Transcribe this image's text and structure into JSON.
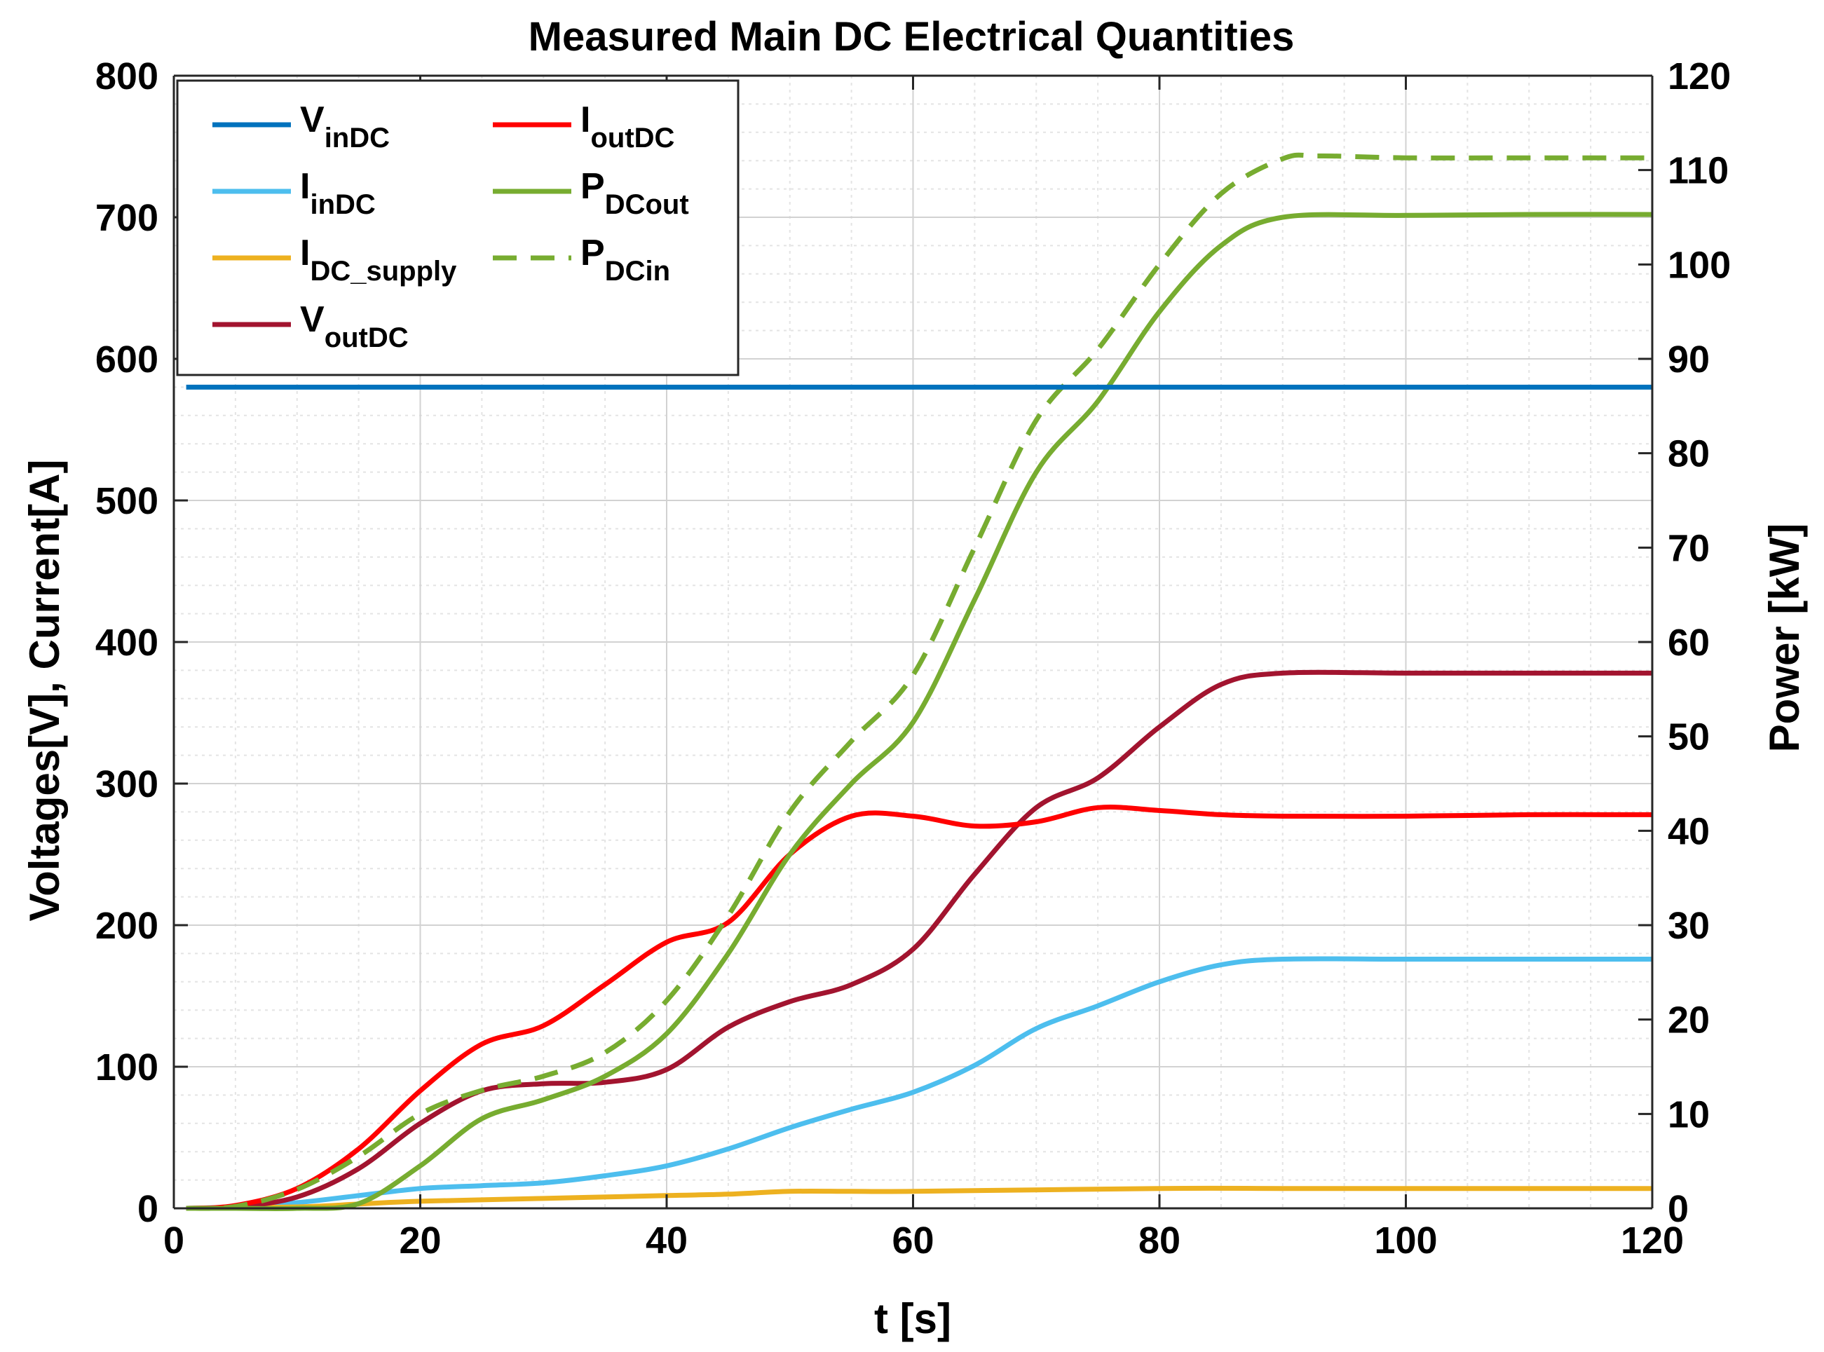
{
  "chart_data": {
    "type": "line",
    "title": "Measured Main DC Electrical Quantities",
    "xlabel": "t [s]",
    "ylabel_left": "Voltages[V], Current[A]",
    "ylabel_right": "Power [kW]",
    "xlim": [
      0,
      120
    ],
    "ylim_left": [
      0,
      800
    ],
    "ylim_right": [
      0,
      120
    ],
    "xticks": [
      0,
      20,
      40,
      60,
      80,
      100,
      120
    ],
    "yticks_left": [
      0,
      100,
      200,
      300,
      400,
      500,
      600,
      700,
      800
    ],
    "yticks_right": [
      0,
      10,
      20,
      30,
      40,
      50,
      60,
      70,
      80,
      90,
      100,
      110,
      120
    ],
    "grid": true,
    "minor_grid": true,
    "legend_position": "top-left",
    "series": [
      {
        "name": "V_inDC",
        "main": "V",
        "sub": "inDC",
        "axis": "left",
        "color": "#0072BD",
        "dash": "solid",
        "x": [
          1,
          20,
          40,
          60,
          80,
          100,
          120
        ],
        "y": [
          580,
          580,
          580,
          580,
          580,
          580,
          580
        ]
      },
      {
        "name": "I_inDC",
        "main": "I",
        "sub": "inDC",
        "axis": "left",
        "color": "#4DBEEE",
        "dash": "solid",
        "x": [
          1,
          5,
          10,
          15,
          20,
          25,
          30,
          35,
          40,
          45,
          50,
          55,
          60,
          65,
          70,
          75,
          80,
          85,
          90,
          100,
          110,
          120
        ],
        "y": [
          0,
          1,
          4,
          9,
          14,
          16,
          18,
          23,
          30,
          42,
          57,
          70,
          82,
          101,
          127,
          143,
          160,
          172,
          176,
          176,
          176,
          176
        ]
      },
      {
        "name": "I_DC_supply",
        "main": "I",
        "sub": "DC_supply",
        "axis": "left",
        "color": "#EDB120",
        "dash": "solid",
        "x": [
          1,
          10,
          15,
          20,
          30,
          40,
          45,
          50,
          55,
          60,
          80,
          90,
          100,
          110,
          120
        ],
        "y": [
          0,
          1,
          3,
          5,
          7,
          9,
          10,
          12,
          12,
          12,
          14,
          14,
          14,
          14,
          14
        ]
      },
      {
        "name": "V_outDC",
        "main": "V",
        "sub": "outDC",
        "axis": "left",
        "color": "#A2142F",
        "dash": "solid",
        "x": [
          1,
          5,
          10,
          15,
          20,
          25,
          30,
          35,
          40,
          45,
          50,
          55,
          60,
          65,
          70,
          75,
          80,
          85,
          90,
          100,
          110,
          120
        ],
        "y": [
          0,
          1,
          8,
          28,
          60,
          83,
          88,
          89,
          98,
          128,
          146,
          158,
          183,
          236,
          283,
          304,
          340,
          370,
          378,
          378,
          378,
          378
        ]
      },
      {
        "name": "I_outDC",
        "main": "I",
        "sub": "outDC",
        "axis": "left",
        "color": "#FF0000",
        "dash": "solid",
        "x": [
          1,
          5,
          10,
          15,
          20,
          25,
          30,
          35,
          40,
          45,
          50,
          55,
          60,
          65,
          70,
          75,
          80,
          85,
          90,
          100,
          110,
          120
        ],
        "y": [
          0,
          2,
          14,
          42,
          83,
          116,
          129,
          158,
          188,
          202,
          250,
          277,
          277,
          270,
          273,
          283,
          281,
          278,
          277,
          277,
          278,
          278
        ]
      },
      {
        "name": "P_DCout",
        "main": "P",
        "sub": "DCout",
        "axis": "right",
        "color": "#77AC30",
        "dash": "solid",
        "x": [
          1,
          5,
          10,
          15,
          20,
          25,
          30,
          35,
          40,
          45,
          50,
          55,
          60,
          65,
          70,
          75,
          80,
          85,
          90,
          100,
          110,
          120
        ],
        "y": [
          0,
          0,
          0,
          0.5,
          4.5,
          9.5,
          11.5,
          14,
          18.5,
          27,
          37.5,
          45,
          51.5,
          64.5,
          78,
          85.5,
          95,
          102,
          105,
          105.2,
          105.3,
          105.3
        ]
      },
      {
        "name": "P_DCin",
        "main": "P",
        "sub": "DCin",
        "axis": "right",
        "color": "#77AC30",
        "dash": "dashed",
        "x": [
          1,
          5,
          10,
          15,
          20,
          25,
          30,
          35,
          40,
          45,
          50,
          55,
          60,
          65,
          70,
          75,
          80,
          85,
          90,
          93,
          100,
          110,
          120
        ],
        "y": [
          0,
          0.2,
          2,
          5.5,
          10,
          12.5,
          14,
          16.5,
          22,
          31,
          42,
          49.5,
          56.5,
          70,
          83.5,
          91,
          100,
          107.5,
          111.2,
          111.5,
          111.3,
          111.3,
          111.3
        ]
      }
    ]
  }
}
